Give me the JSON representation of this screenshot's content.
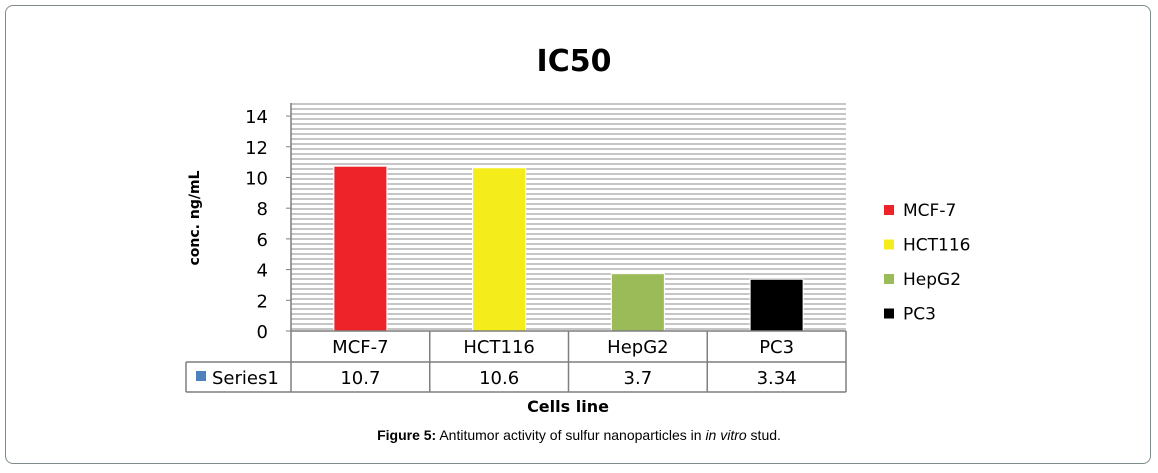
{
  "chart_data": {
    "type": "bar",
    "title": "IC50",
    "xlabel": "Cells line",
    "ylabel": "conc. ng/mL",
    "categories": [
      "MCF-7",
      "HCT116",
      "HepG2",
      "PC3"
    ],
    "series": [
      {
        "name": "Series1",
        "values": [
          10.7,
          10.6,
          3.7,
          3.34
        ]
      }
    ],
    "value_labels": [
      "10.7",
      "10.6",
      "3.7",
      "3.34"
    ],
    "bar_colors": [
      "#ee2229",
      "#f5ec1b",
      "#9bbb59",
      "#000000"
    ],
    "series_marker_color": "#4f81bd",
    "ylim": [
      0,
      14
    ],
    "yticks": [
      0,
      2,
      4,
      6,
      8,
      10,
      12,
      14
    ],
    "grid": true,
    "legend_position": "right",
    "legend": [
      "MCF-7",
      "HCT116",
      "HepG2",
      "PC3"
    ],
    "data_table": true
  },
  "caption": {
    "label": "Figure 5:",
    "text_before": " Antitumor activity of sulfur nanoparticles in ",
    "italic": "in vitro",
    "text_after": " stud."
  }
}
